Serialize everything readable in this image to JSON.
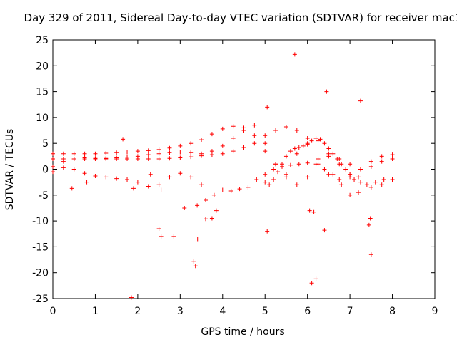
{
  "chart_data": {
    "type": "scatter",
    "title": "Day 329 of 2011, Sidereal Day-to-day VTEC variation (SDTVAR) for receiver mac1",
    "xlabel": "GPS time / hours",
    "ylabel": "SDTVAR / TECUs",
    "xlim": [
      0,
      9
    ],
    "ylim": [
      -25,
      25
    ],
    "x_ticks": [
      0,
      1,
      2,
      3,
      4,
      5,
      6,
      7,
      8,
      9
    ],
    "y_ticks": [
      -25,
      -20,
      -15,
      -10,
      -5,
      0,
      5,
      10,
      15,
      20,
      25
    ],
    "x_tick_labels": [
      "0",
      "1",
      "2",
      "3",
      "4",
      "5",
      "6",
      "7",
      "8",
      "9"
    ],
    "y_tick_labels": [
      "-25",
      "-20",
      "-15",
      "-10",
      "-5",
      "0",
      "5",
      "10",
      "15",
      "20",
      "25"
    ],
    "marker": "+",
    "color": "#ff0000",
    "series": [
      {
        "name": "SDTVAR",
        "x": [
          0.0,
          0.25,
          0.5,
          0.75,
          1.0,
          1.25,
          1.5,
          1.75,
          2.0,
          2.25,
          2.5,
          2.75,
          3.0,
          3.25,
          3.5,
          3.75,
          4.0,
          4.25,
          4.5,
          4.75,
          5.0,
          5.25,
          5.5,
          5.75,
          6.0,
          6.25,
          6.5,
          6.75,
          7.0,
          7.25,
          7.5,
          7.75,
          8.0,
          0.0,
          0.25,
          0.5,
          0.75,
          1.0,
          1.25,
          1.5,
          1.75,
          2.0,
          2.25,
          2.5,
          2.75,
          3.0,
          3.25,
          3.5,
          3.75,
          4.0,
          4.25,
          4.5,
          4.75,
          5.0,
          5.25,
          5.5,
          5.75,
          6.0,
          6.25,
          6.5,
          6.75,
          7.0,
          7.25,
          7.5,
          7.75,
          8.0,
          0.0,
          0.25,
          0.5,
          0.75,
          1.0,
          1.25,
          1.5,
          1.75,
          2.0,
          2.25,
          2.5,
          2.75,
          3.0,
          3.25,
          3.5,
          3.75,
          4.0,
          4.25,
          4.5,
          4.75,
          5.0,
          5.25,
          5.5,
          5.75,
          6.0,
          6.25,
          6.5,
          6.75,
          7.0,
          7.25,
          7.5,
          7.75,
          8.0,
          0.0,
          0.25,
          0.5,
          0.75,
          1.0,
          1.25,
          1.5,
          1.75,
          2.0,
          2.25,
          2.5,
          2.75,
          3.0,
          3.25,
          3.5,
          3.4,
          3.6,
          3.8,
          4.0,
          4.2,
          4.4,
          4.6,
          4.8,
          5.0,
          5.2,
          5.4,
          5.6,
          5.8,
          6.0,
          6.2,
          6.4,
          6.6,
          6.8,
          7.0,
          7.2,
          7.4,
          7.6,
          7.8,
          8.0,
          5.0,
          5.1,
          5.2,
          5.3,
          5.4,
          5.5,
          5.6,
          5.7,
          5.8,
          5.9,
          6.0,
          6.1,
          6.2,
          6.3,
          6.4,
          6.5,
          6.6,
          6.7,
          6.8,
          6.9,
          7.0,
          7.1,
          7.2,
          5.7,
          5.05,
          6.45,
          7.25,
          1.65,
          1.85,
          1.9,
          2.5,
          2.55,
          2.85,
          3.32,
          3.36,
          3.41,
          3.6,
          3.75,
          3.85,
          5.05,
          6.1,
          6.4,
          6.2,
          7.5,
          7.45,
          7.48,
          0.45,
          0.8,
          2.3,
          2.55,
          3.1,
          6.15,
          6.05
        ],
        "y": [
          3.0,
          3.0,
          3.0,
          3.0,
          3.0,
          3.1,
          3.2,
          3.3,
          3.5,
          3.6,
          3.8,
          4.1,
          4.5,
          5.0,
          5.7,
          6.8,
          7.8,
          8.3,
          8.0,
          6.5,
          3.5,
          1.0,
          -1.5,
          -3.0,
          -1.5,
          1.0,
          2.5,
          2.0,
          1.0,
          0.0,
          0.5,
          1.5,
          2.0,
          2.0,
          2.0,
          2.0,
          2.0,
          2.0,
          2.1,
          2.2,
          2.3,
          2.5,
          2.8,
          3.0,
          3.2,
          3.3,
          3.2,
          3.0,
          3.5,
          4.5,
          6.0,
          7.5,
          8.5,
          5.0,
          1.0,
          -1.0,
          3.0,
          6.0,
          5.5,
          3.0,
          1.0,
          -1.0,
          -2.5,
          -3.5,
          -3.0,
          -2.0,
          0.5,
          1.5,
          2.0,
          2.2,
          2.1,
          2.0,
          2.0,
          2.0,
          2.0,
          2.0,
          2.0,
          2.1,
          2.2,
          2.4,
          2.6,
          2.8,
          3.0,
          3.5,
          4.2,
          5.0,
          6.5,
          7.5,
          8.2,
          7.5,
          5.0,
          2.0,
          -1.0,
          -2.0,
          -1.5,
          0.0,
          1.5,
          2.5,
          2.8,
          -0.5,
          0.3,
          0.0,
          -0.8,
          -1.3,
          -1.5,
          -1.8,
          -2.0,
          -2.5,
          -3.3,
          -3.0,
          -1.5,
          -0.8,
          -1.5,
          -3.0,
          -7.0,
          -6.0,
          -5.0,
          -4.0,
          -4.2,
          -3.8,
          -3.5,
          -2.0,
          -1.0,
          0.0,
          0.5,
          0.8,
          1.0,
          1.2,
          1.0,
          0.0,
          -1.0,
          -3.0,
          -5.0,
          -4.5,
          -3.0,
          -2.5,
          -2.0,
          -2.0,
          -2.5,
          -3.0,
          -2.0,
          -0.5,
          1.0,
          2.5,
          3.5,
          4.0,
          4.2,
          4.5,
          4.8,
          5.5,
          6.0,
          5.8,
          5.0,
          4.0,
          3.0,
          2.0,
          1.0,
          0.0,
          -1.0,
          -2.0,
          -1.5,
          22.2,
          12.0,
          15.0,
          13.2,
          5.8,
          -24.8,
          -3.7,
          -11.5,
          -13.0,
          -13.0,
          -17.8,
          -18.7,
          -13.5,
          -9.6,
          -9.5,
          -8.0,
          -12.0,
          -22.0,
          -11.8,
          -21.2,
          -16.5,
          -10.8,
          -9.5,
          -3.7,
          -2.5,
          -1.0,
          -4.0,
          -7.5,
          -8.3,
          -8.0
        ]
      }
    ]
  }
}
